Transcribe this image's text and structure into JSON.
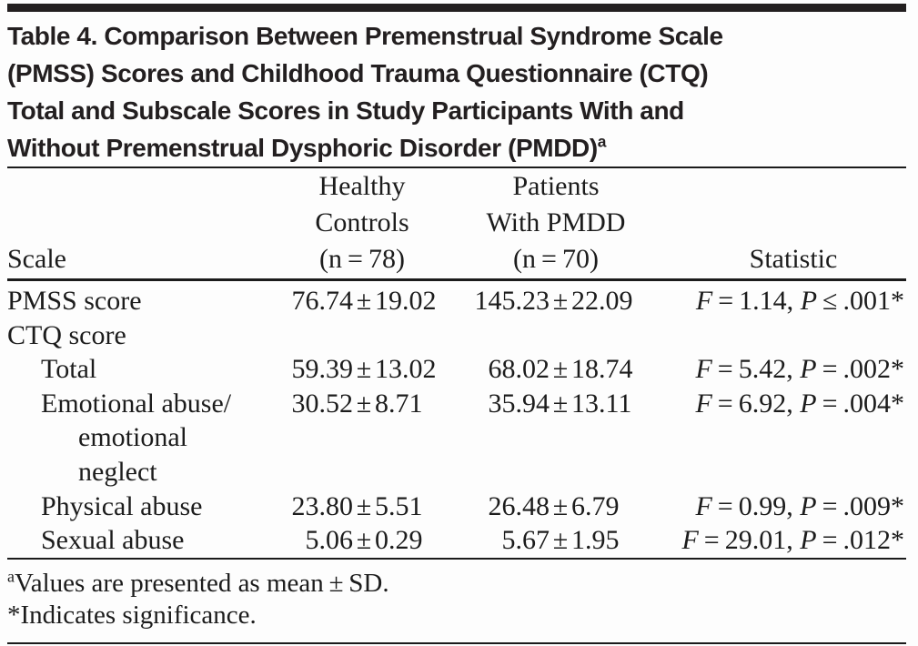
{
  "header": {
    "title": "Table 4. Comparison Between Premenstrual Syndrome Scale\n(PMSS) Scores and Childhood Trauma Questionnaire (CTQ)\nTotal and Subscale Scores in Study Participants With and\nWithout Premenstrual Dysphoric Disorder (PMDD)",
    "title_marker": "a"
  },
  "symbols": {
    "pm": "±",
    "f": "F",
    "p": "P"
  },
  "chart_data": {
    "type": "table",
    "title": "Table 4. Comparison Between Premenstrual Syndrome Scale (PMSS) Scores and Childhood Trauma Questionnaire (CTQ) Total and Subscale Scores in Study Participants With and Without Premenstrual Dysphoric Disorder (PMDD)",
    "columns": [
      "Scale",
      "Healthy Controls (n = 78)",
      "Patients With PMDD (n = 70)",
      "Statistic"
    ],
    "rows": [
      [
        "PMSS score",
        "76.74 ± 19.02",
        "145.23 ± 22.09",
        "F = 1.14, P ≤ .001*"
      ],
      [
        "CTQ score",
        "",
        "",
        ""
      ],
      [
        "Total",
        "59.39 ± 13.02",
        "68.02 ± 18.74",
        "F = 5.42, P = .002*"
      ],
      [
        "Emotional abuse/emotional neglect",
        "30.52 ± 8.71",
        "35.94 ± 13.11",
        "F = 6.92, P = .004*"
      ],
      [
        "Physical abuse",
        "23.80 ± 5.51",
        "26.48 ± 6.79",
        "F = 0.99, P = .009*"
      ],
      [
        "Sexual abuse",
        "5.06 ± 0.29",
        "5.67 ± 1.95",
        "F = 29.01, P = .012*"
      ]
    ]
  },
  "table": {
    "col_headers": {
      "scale": "Scale",
      "healthy": "Healthy\nControls\n(n = 78)",
      "pmdd": "Patients\nWith PMDD\n(n = 70)",
      "statistic": "Statistic"
    },
    "rows": [
      {
        "label": "PMSS score",
        "healthy_mean": "76.74",
        "healthy_sd": "19.02",
        "pmdd_mean": "145.23",
        "pmdd_sd": "22.09",
        "f_rest": " = 1.14, ",
        "p_rest": " ≤ .001*"
      },
      {
        "label": "CTQ score"
      },
      {
        "label": "Total",
        "healthy_mean": "59.39",
        "healthy_sd": "13.02",
        "pmdd_mean": "68.02",
        "pmdd_sd": "18.74",
        "f_rest": " = 5.42, ",
        "p_rest": " = .002*"
      },
      {
        "label": "Emotional abuse/\nemotional\nneglect",
        "healthy_mean": "30.52",
        "healthy_sd": "8.71",
        "pmdd_mean": "35.94",
        "pmdd_sd": "13.11",
        "f_rest": " = 6.92, ",
        "p_rest": " = .004*"
      },
      {
        "label": "Physical abuse",
        "healthy_mean": "23.80",
        "healthy_sd": "5.51",
        "pmdd_mean": "26.48",
        "pmdd_sd": "6.79",
        "f_rest": " = 0.99, ",
        "p_rest": " = .009*"
      },
      {
        "label": "Sexual abuse",
        "healthy_mean": "5.06",
        "healthy_sd": "0.29",
        "pmdd_mean": "5.67",
        "pmdd_sd": "1.95",
        "f_rest": " = 29.01, ",
        "p_rest": " = .012*"
      }
    ]
  },
  "footnotes": [
    {
      "marker": "a",
      "text": "Values are presented as mean ± SD."
    },
    {
      "marker": "*",
      "text": "Indicates significance."
    }
  ]
}
